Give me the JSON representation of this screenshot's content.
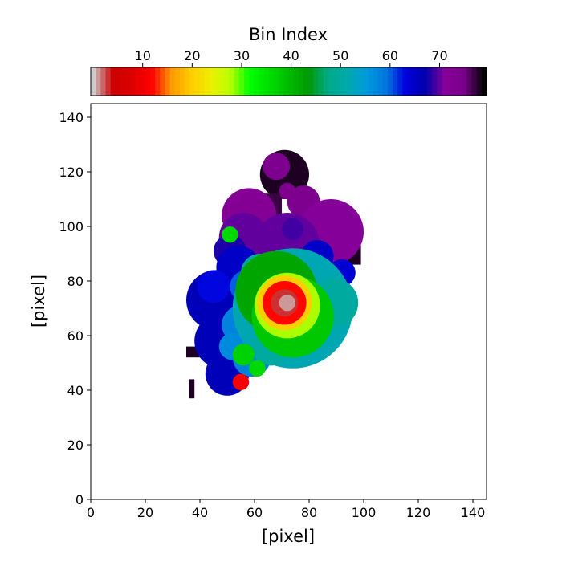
{
  "chart_data": {
    "type": "heatmap",
    "title": "",
    "xlabel": "[pixel]",
    "ylabel": "[pixel]",
    "xlim": [
      0,
      145
    ],
    "ylim": [
      0,
      145
    ],
    "xticks": [
      0,
      20,
      40,
      60,
      80,
      100,
      120,
      140
    ],
    "yticks": [
      0,
      20,
      40,
      60,
      80,
      100,
      120,
      140
    ],
    "colorbar": {
      "label": "Bin Index",
      "range": [
        0,
        79
      ],
      "ticks": [
        10,
        20,
        30,
        40,
        50,
        60,
        70
      ],
      "location": "top",
      "colormap": "nipy_spectral_r"
    },
    "bins": [
      {
        "type": "rect",
        "x0": 35,
        "x1": 40,
        "y0": 52,
        "y1": 56,
        "bin": 78
      },
      {
        "type": "rect",
        "x0": 36,
        "x1": 38,
        "y0": 37,
        "y1": 44,
        "bin": 78
      },
      {
        "type": "circle",
        "cx": 71,
        "cy": 119,
        "r": 9,
        "bin": 78
      },
      {
        "type": "rect",
        "x0": 61,
        "x1": 70,
        "y0": 97,
        "y1": 112,
        "bin": 77
      },
      {
        "type": "rect",
        "x0": 92,
        "x1": 99,
        "y0": 86,
        "y1": 93,
        "bin": 78
      },
      {
        "type": "circle",
        "cx": 68,
        "cy": 122,
        "r": 5,
        "bin": 74
      },
      {
        "type": "circle",
        "cx": 72,
        "cy": 113,
        "r": 3,
        "bin": 74
      },
      {
        "type": "circle",
        "cx": 78,
        "cy": 109,
        "r": 6,
        "bin": 74
      },
      {
        "type": "circle",
        "cx": 58,
        "cy": 104,
        "r": 10,
        "bin": 72
      },
      {
        "type": "circle",
        "cx": 88,
        "cy": 98,
        "r": 12,
        "bin": 71
      },
      {
        "type": "circle",
        "cx": 72,
        "cy": 93,
        "r": 12,
        "bin": 70
      },
      {
        "type": "circle",
        "cx": 56,
        "cy": 96,
        "r": 9,
        "bin": 70
      },
      {
        "type": "circle",
        "cx": 51,
        "cy": 91,
        "r": 6,
        "bin": 68
      },
      {
        "type": "circle",
        "cx": 74,
        "cy": 99,
        "r": 4,
        "bin": 69
      },
      {
        "type": "circle",
        "cx": 46,
        "cy": 73,
        "r": 11,
        "bin": 66
      },
      {
        "type": "circle",
        "cx": 48,
        "cy": 58,
        "r": 10,
        "bin": 66
      },
      {
        "type": "circle",
        "cx": 50,
        "cy": 46,
        "r": 8,
        "bin": 66
      },
      {
        "type": "circle",
        "cx": 54,
        "cy": 85,
        "r": 8,
        "bin": 65
      },
      {
        "type": "circle",
        "cx": 83,
        "cy": 89,
        "r": 6,
        "bin": 65
      },
      {
        "type": "circle",
        "cx": 92,
        "cy": 83,
        "r": 5,
        "bin": 64
      },
      {
        "type": "circle",
        "cx": 45,
        "cy": 78,
        "r": 6,
        "bin": 63
      },
      {
        "type": "circle",
        "cx": 57,
        "cy": 78,
        "r": 6,
        "bin": 60
      },
      {
        "type": "circle",
        "cx": 55,
        "cy": 64,
        "r": 7,
        "bin": 58
      },
      {
        "type": "circle",
        "cx": 59,
        "cy": 52,
        "r": 7,
        "bin": 58
      },
      {
        "type": "circle",
        "cx": 52,
        "cy": 56,
        "r": 5,
        "bin": 57
      },
      {
        "type": "circle",
        "cx": 74,
        "cy": 70,
        "r": 22,
        "bin": 52
      },
      {
        "type": "circle",
        "cx": 62,
        "cy": 83,
        "r": 7,
        "bin": 50
      },
      {
        "type": "circle",
        "cx": 89,
        "cy": 72,
        "r": 9,
        "bin": 50
      },
      {
        "type": "circle",
        "cx": 66,
        "cy": 56,
        "r": 7,
        "bin": 50
      },
      {
        "type": "circle",
        "cx": 68,
        "cy": 76,
        "r": 15,
        "bin": 42
      },
      {
        "type": "circle",
        "cx": 74,
        "cy": 67,
        "r": 15,
        "bin": 38
      },
      {
        "type": "circle",
        "cx": 56,
        "cy": 53,
        "r": 4,
        "bin": 37
      },
      {
        "type": "circle",
        "cx": 61,
        "cy": 48,
        "r": 3,
        "bin": 36
      },
      {
        "type": "circle",
        "cx": 51,
        "cy": 97,
        "r": 3,
        "bin": 36
      },
      {
        "type": "circle",
        "cx": 72,
        "cy": 71,
        "r": 12,
        "bin": 28
      },
      {
        "type": "circle",
        "cx": 71,
        "cy": 72,
        "r": 10,
        "bin": 20
      },
      {
        "type": "circle",
        "cx": 71,
        "cy": 72,
        "r": 8,
        "bin": 12
      },
      {
        "type": "circle",
        "cx": 71,
        "cy": 72,
        "r": 5,
        "bin": 3
      },
      {
        "type": "circle",
        "cx": 72,
        "cy": 72,
        "r": 3,
        "bin": 1
      },
      {
        "type": "circle",
        "cx": 55,
        "cy": 43,
        "r": 3,
        "bin": 11
      }
    ]
  }
}
